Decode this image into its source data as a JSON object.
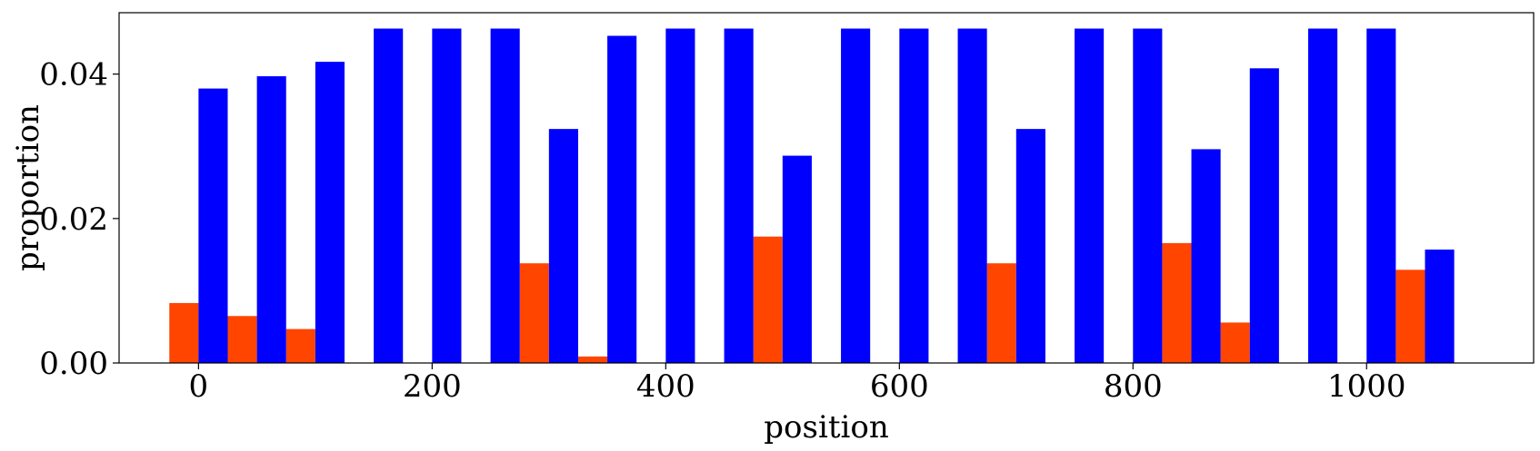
{
  "chart_data": {
    "type": "bar",
    "xlabel": "position",
    "ylabel": "proportion",
    "xlim": [
      -68,
      1143
    ],
    "ylim": [
      0,
      0.0485
    ],
    "x_ticks": [
      0,
      200,
      400,
      600,
      800,
      1000
    ],
    "x_tick_labels": [
      "0",
      "200",
      "400",
      "600",
      "800",
      "1000"
    ],
    "y_ticks": [
      0,
      0.02,
      0.04
    ],
    "y_tick_labels": [
      "0.00",
      "0.02",
      "0.04"
    ],
    "grid": false,
    "legend": "none",
    "bar_width": 25,
    "group_spacing": 50,
    "positions": [
      0,
      50,
      100,
      150,
      200,
      250,
      300,
      350,
      400,
      450,
      500,
      550,
      600,
      650,
      700,
      750,
      800,
      850,
      900,
      950,
      1000,
      1050
    ],
    "series": [
      {
        "color": "#ff4500",
        "offset": -12.5,
        "values": [
          0.0083,
          0.0065,
          0.0047,
          0,
          0,
          0,
          0.0138,
          0.0009,
          0,
          0,
          0.0175,
          0,
          0,
          0,
          0.0138,
          0,
          0,
          0.0166,
          0.0056,
          0,
          0,
          0.0129
        ]
      },
      {
        "color": "#0000ff",
        "offset": 12.5,
        "values": [
          0.038,
          0.0397,
          0.0417,
          0.0463,
          0.0463,
          0.0463,
          0.0324,
          0.0453,
          0.0463,
          0.0463,
          0.0287,
          0.0463,
          0.0463,
          0.0463,
          0.0324,
          0.0463,
          0.0463,
          0.0296,
          0.0408,
          0.0463,
          0.0463,
          0.0157
        ]
      }
    ]
  }
}
